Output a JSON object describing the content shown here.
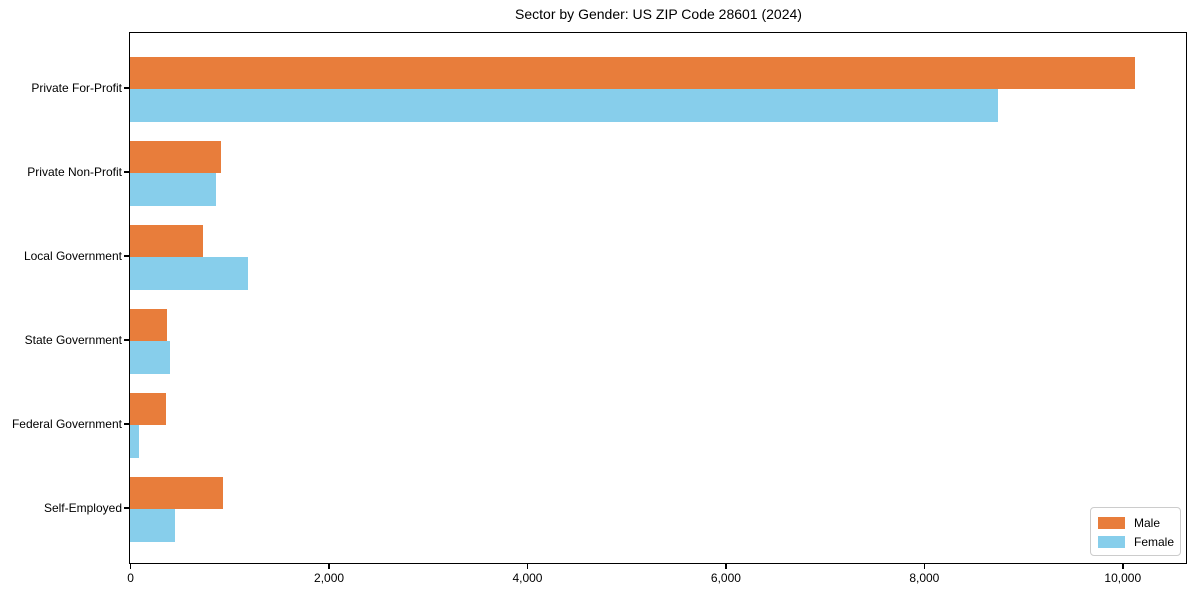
{
  "figure": {
    "title": "Sector by Gender: US ZIP Code 28601 (2024)"
  },
  "chart_data": {
    "type": "bar",
    "orientation": "horizontal",
    "title": "Sector by Gender: US ZIP Code 28601 (2024)",
    "categories": [
      "Private For-Profit",
      "Private Non-Profit",
      "Local Government",
      "State Government",
      "Federal Government",
      "Self-Employed"
    ],
    "series": [
      {
        "name": "Male",
        "color": "#e87d3b",
        "values": [
          10125,
          915,
          740,
          370,
          365,
          940
        ]
      },
      {
        "name": "Female",
        "color": "#87ceeb",
        "values": [
          8745,
          865,
          1190,
          405,
          90,
          455
        ]
      }
    ],
    "xlabel": "",
    "ylabel": "",
    "xlim": [
      0,
      10633
    ],
    "xticks": [
      0,
      2000,
      4000,
      6000,
      8000,
      10000
    ],
    "xtick_labels": [
      "0",
      "2,000",
      "4,000",
      "6,000",
      "8,000",
      "10,000"
    ],
    "grid": false,
    "legend_position": "lower right",
    "legend_entries": [
      "Male",
      "Female"
    ]
  }
}
